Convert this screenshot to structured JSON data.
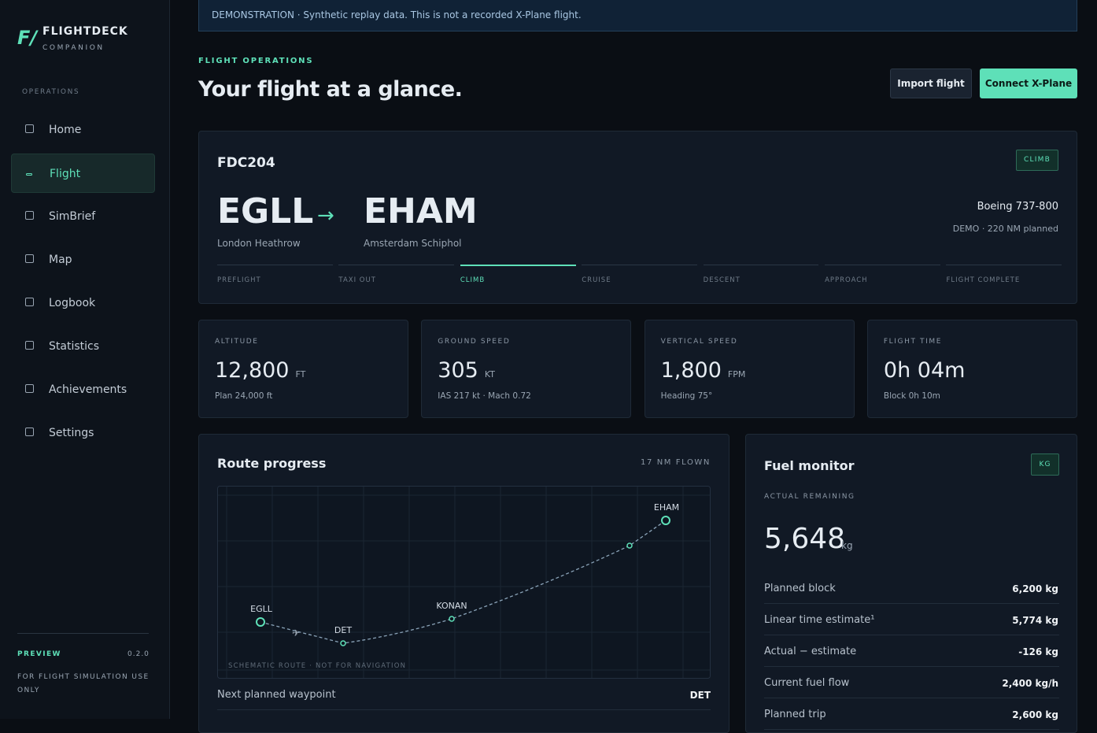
{
  "banner": "DEMONSTRATION · Synthetic replay data. This is not a recorded X-Plane flight.",
  "sidebar": {
    "logo_mark": "F/",
    "brand": "FLIGHTDECK",
    "brand_sub": "COMPANION",
    "section": "OPERATIONS",
    "nav": [
      "Home",
      "Flight",
      "SimBrief",
      "Map",
      "Logbook",
      "Statistics",
      "Achievements",
      "Settings"
    ],
    "preview": "PREVIEW",
    "version": "0.2.0",
    "footer": "FOR FLIGHT SIMULATION USE ONLY"
  },
  "header": {
    "eyebrow": "FLIGHT OPERATIONS",
    "title": "Your flight at a glance.",
    "buttons": [
      "Import flight",
      "Connect X-Plane"
    ]
  },
  "flight": {
    "callsign": "FDC204",
    "phase_badge": "CLIMB",
    "origin": {
      "code": "EGLL",
      "name": "London Heathrow"
    },
    "destination": {
      "code": "EHAM",
      "name": "Amsterdam Schiphol"
    },
    "aircraft": "Boeing 737-800",
    "note": "DEMO · 220 NM planned",
    "phases": [
      "PREFLIGHT",
      "TAXI OUT",
      "CLIMB",
      "CRUISE",
      "DESCENT",
      "APPROACH",
      "FLIGHT COMPLETE"
    ]
  },
  "stats": [
    {
      "label": "ALTITUDE",
      "value": "12,800",
      "unit": "FT",
      "sub": "Plan 24,000 ft"
    },
    {
      "label": "GROUND SPEED",
      "value": "305",
      "unit": "KT",
      "sub": "IAS 217 kt · Mach 0.72"
    },
    {
      "label": "VERTICAL SPEED",
      "value": "1,800",
      "unit": "FPM",
      "sub": "Heading 75°"
    },
    {
      "label": "FLIGHT TIME",
      "value": "0h 04m",
      "sub": "Block 0h 10m"
    }
  ],
  "route": {
    "title": "Route progress",
    "flown": "17 NM FLOWN",
    "waypoints": [
      "EGLL",
      "DET",
      "KONAN",
      "EHAM"
    ],
    "caption": "SCHEMATIC ROUTE · NOT FOR NAVIGATION",
    "rows": [
      [
        "Next planned waypoint",
        "DET"
      ]
    ]
  },
  "fuel": {
    "title": "Fuel monitor",
    "unit_badge": "KG",
    "label": "ACTUAL REMAINING",
    "value": "5,648",
    "unit": "kg",
    "rows": [
      [
        "Planned block",
        "6,200 kg"
      ],
      [
        "Linear time estimate¹",
        "5,774 kg"
      ],
      [
        "Actual − estimate",
        "-126 kg"
      ],
      [
        "Current fuel flow",
        "2,400 kg/h"
      ],
      [
        "Planned trip",
        "2,600 kg"
      ]
    ]
  }
}
